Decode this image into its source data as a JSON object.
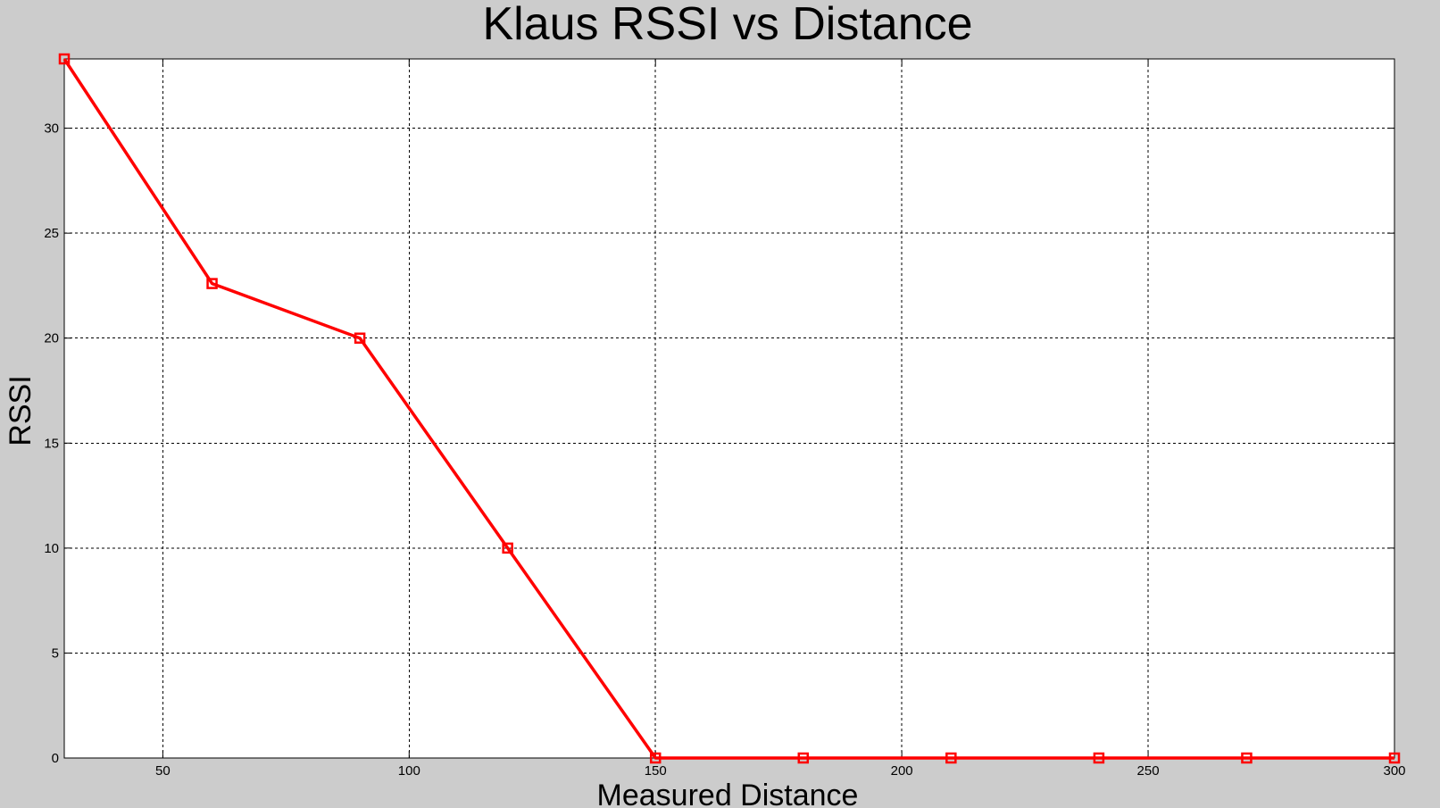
{
  "chart_data": {
    "type": "line",
    "title": "Klaus RSSI vs Distance",
    "xlabel": "Measured Distance",
    "ylabel": "RSSI",
    "xlim": [
      30,
      300
    ],
    "ylim": [
      0,
      33.3
    ],
    "xticks": [
      50,
      100,
      150,
      200,
      250,
      300
    ],
    "yticks": [
      0,
      5,
      10,
      15,
      20,
      25,
      30
    ],
    "grid": true,
    "series": [
      {
        "color": "#ff0000",
        "marker": "square",
        "points": [
          {
            "x": 30,
            "y": 33.3
          },
          {
            "x": 60,
            "y": 22.6
          },
          {
            "x": 90,
            "y": 20.0
          },
          {
            "x": 120,
            "y": 10.0
          },
          {
            "x": 150,
            "y": 0
          },
          {
            "x": 180,
            "y": 0
          },
          {
            "x": 210,
            "y": 0
          },
          {
            "x": 240,
            "y": 0
          },
          {
            "x": 270,
            "y": 0
          },
          {
            "x": 300,
            "y": 0
          }
        ]
      }
    ]
  }
}
